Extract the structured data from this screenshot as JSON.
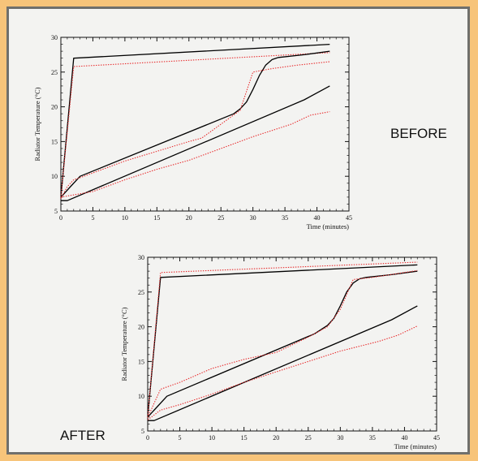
{
  "captions": {
    "before": "BEFORE",
    "after": "AFTER"
  },
  "colors": {
    "measured": "#000000",
    "model": "#e8282a",
    "background": "#f7c47a",
    "panel": "#f3f3f1"
  },
  "chart_data": [
    {
      "id": "before",
      "type": "line",
      "xlabel": "Time (minutes)",
      "ylabel": "Radiator Temperature (°C)",
      "xlim": [
        0,
        45
      ],
      "ylim": [
        5,
        30
      ],
      "xticks": [
        0,
        5,
        10,
        15,
        20,
        25,
        30,
        35,
        40,
        45
      ],
      "yticks": [
        5,
        10,
        15,
        20,
        25,
        30
      ],
      "series": [
        {
          "style": "solid",
          "x": [
            0,
            2,
            42
          ],
          "y": [
            7,
            27,
            29
          ]
        },
        {
          "style": "dotted",
          "x": [
            0,
            2,
            42
          ],
          "y": [
            7,
            25.8,
            27.8
          ]
        },
        {
          "style": "solid",
          "x": [
            0,
            1.5,
            3,
            27,
            28,
            29,
            30,
            31,
            32,
            33,
            34,
            38,
            42
          ],
          "y": [
            7,
            8.5,
            10,
            19,
            19.7,
            20.7,
            22.5,
            24.5,
            26,
            26.8,
            27.1,
            27.5,
            28
          ]
        },
        {
          "style": "dotted",
          "x": [
            0,
            1,
            2,
            3,
            10,
            20,
            22,
            28,
            30,
            33,
            37,
            42
          ],
          "y": [
            6.8,
            8.5,
            9.5,
            9.8,
            12.2,
            15,
            15.5,
            19.5,
            25,
            25.5,
            26,
            26.5
          ]
        },
        {
          "style": "solid",
          "x": [
            0,
            1,
            38,
            42
          ],
          "y": [
            6.5,
            6.5,
            21,
            23
          ]
        },
        {
          "style": "dotted",
          "x": [
            0,
            5,
            10,
            15,
            20,
            25,
            30,
            36,
            39,
            42
          ],
          "y": [
            7,
            7.8,
            9.5,
            11,
            12.3,
            14,
            15.7,
            17.5,
            18.8,
            19.3
          ]
        }
      ]
    },
    {
      "id": "after",
      "type": "line",
      "xlabel": "Time (minutes)",
      "ylabel": "Radiator Temperature (°C)",
      "xlim": [
        0,
        45
      ],
      "ylim": [
        5,
        30
      ],
      "xticks": [
        0,
        5,
        10,
        15,
        20,
        25,
        30,
        35,
        40,
        45
      ],
      "yticks": [
        5,
        10,
        15,
        20,
        25,
        30
      ],
      "series": [
        {
          "style": "solid",
          "x": [
            0,
            2,
            42
          ],
          "y": [
            7,
            27.1,
            28.9
          ]
        },
        {
          "style": "dotted",
          "x": [
            0,
            2,
            42
          ],
          "y": [
            7,
            27.8,
            29.3
          ]
        },
        {
          "style": "solid",
          "x": [
            0,
            1.5,
            3,
            26,
            28,
            29,
            30,
            31,
            32,
            33,
            34,
            38,
            42
          ],
          "y": [
            7,
            8.5,
            10,
            19,
            20.2,
            21.2,
            23,
            25,
            26.3,
            26.9,
            27.1,
            27.5,
            28
          ]
        },
        {
          "style": "dotted",
          "x": [
            0,
            1,
            2,
            5,
            10,
            15,
            20,
            25,
            28,
            30,
            32,
            35,
            42
          ],
          "y": [
            6.9,
            9,
            11,
            12,
            14,
            15.3,
            16.3,
            18.5,
            20,
            22.5,
            26.8,
            27.1,
            28.1
          ]
        },
        {
          "style": "solid",
          "x": [
            0,
            1,
            38,
            42
          ],
          "y": [
            6.5,
            6.5,
            21,
            23
          ]
        },
        {
          "style": "dotted",
          "x": [
            0,
            2,
            5,
            10,
            15,
            20,
            25,
            30,
            36,
            39,
            42
          ],
          "y": [
            6.6,
            8,
            8.8,
            10.3,
            12,
            13.5,
            15,
            16.5,
            17.9,
            18.8,
            20.1
          ]
        }
      ]
    }
  ]
}
